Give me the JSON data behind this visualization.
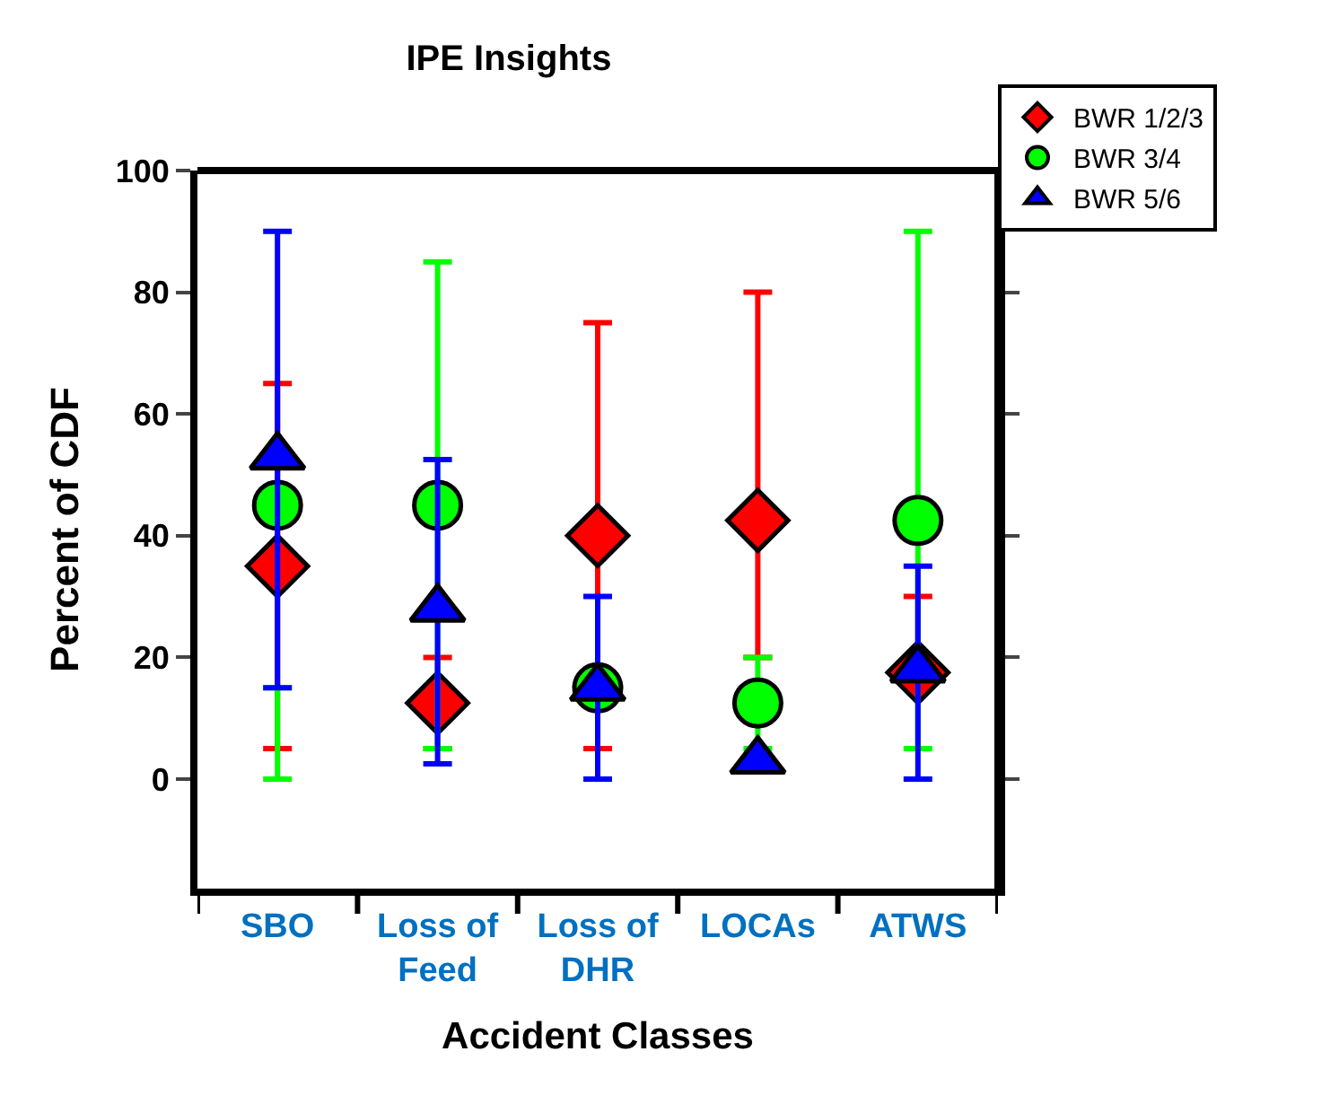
{
  "chart_data": {
    "type": "scatter",
    "title": "IPE Insights",
    "xlabel": "Accident Classes",
    "ylabel": "Percent of CDF",
    "categories": [
      "SBO",
      "Loss of Feed",
      "Loss of DHR",
      "LOCAs",
      "ATWS"
    ],
    "ylim": [
      -18,
      100
    ],
    "yticks": [
      0,
      20,
      40,
      60,
      80,
      100
    ],
    "legend": "top right",
    "series": [
      {
        "name": "BWR 1/2/3",
        "color": "#ff0000",
        "marker": "diamond",
        "values": [
          35,
          12.5,
          40,
          42.5,
          17.5
        ],
        "errors": [
          [
            5,
            65
          ],
          [
            5,
            20
          ],
          [
            5,
            75
          ],
          [
            20,
            80
          ],
          [
            17.5,
            30
          ]
        ]
      },
      {
        "name": "BWR 3/4",
        "color": "#00ff00",
        "marker": "circle",
        "values": [
          45,
          45,
          15,
          12.5,
          42.5
        ],
        "errors": [
          [
            0,
            15
          ],
          [
            5,
            85
          ],
          null,
          [
            5,
            20
          ],
          [
            5,
            90
          ]
        ]
      },
      {
        "name": "BWR 5/6",
        "color": "#0000ff",
        "marker": "triangle",
        "values": [
          53,
          28,
          15,
          3,
          18
        ],
        "errors": [
          [
            15,
            90
          ],
          [
            2.5,
            52.5
          ],
          [
            0,
            30
          ],
          null,
          [
            0,
            35
          ]
        ]
      }
    ]
  }
}
